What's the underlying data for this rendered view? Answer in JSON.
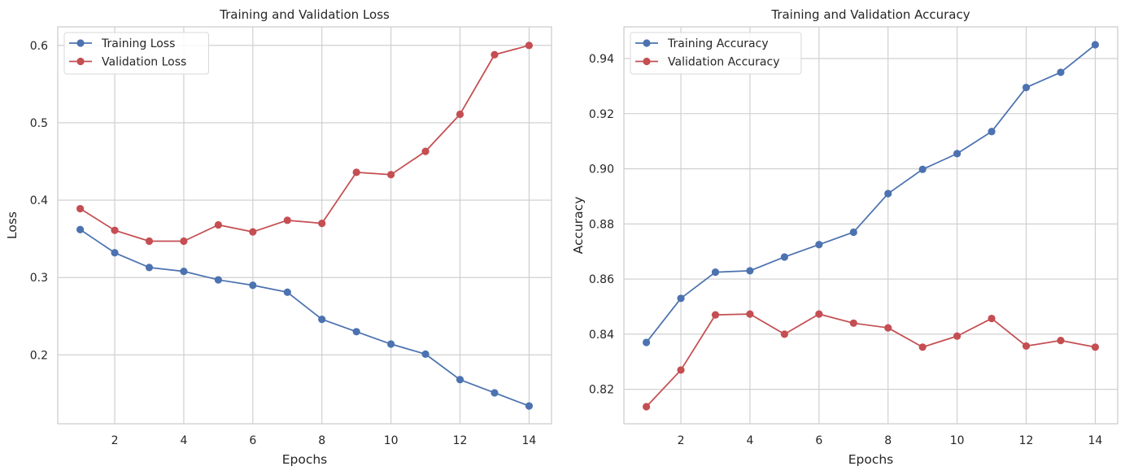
{
  "chart_data": [
    {
      "type": "line",
      "title": "Training and Validation Loss",
      "xlabel": "Epochs",
      "ylabel": "Loss",
      "x": [
        1,
        2,
        3,
        4,
        5,
        6,
        7,
        8,
        9,
        10,
        11,
        12,
        13,
        14
      ],
      "xlim": [
        0.35,
        14.65
      ],
      "ylim": [
        0.111,
        0.624
      ],
      "xticks": [
        2,
        4,
        6,
        8,
        10,
        12,
        14
      ],
      "yticks": [
        0.2,
        0.3,
        0.4,
        0.5,
        0.6
      ],
      "ytick_labels": [
        "0.2",
        "0.3",
        "0.4",
        "0.5",
        "0.6"
      ],
      "grid": true,
      "legend_loc": "upper left",
      "series": [
        {
          "name": "Training Loss",
          "color": "#4c72b0",
          "values": [
            0.362,
            0.332,
            0.313,
            0.308,
            0.297,
            0.29,
            0.281,
            0.246,
            0.23,
            0.214,
            0.201,
            0.168,
            0.151,
            0.134
          ]
        },
        {
          "name": "Validation Loss",
          "color": "#c44e52",
          "values": [
            0.389,
            0.361,
            0.347,
            0.347,
            0.368,
            0.359,
            0.374,
            0.37,
            0.436,
            0.433,
            0.463,
            0.511,
            0.588,
            0.6
          ]
        }
      ]
    },
    {
      "type": "line",
      "title": "Training and Validation Accuracy",
      "xlabel": "Epochs",
      "ylabel": "Accuracy",
      "x": [
        1,
        2,
        3,
        4,
        5,
        6,
        7,
        8,
        9,
        10,
        11,
        12,
        13,
        14
      ],
      "xlim": [
        0.35,
        14.65
      ],
      "ylim": [
        0.8075,
        0.9515
      ],
      "xticks": [
        2,
        4,
        6,
        8,
        10,
        12,
        14
      ],
      "yticks": [
        0.82,
        0.84,
        0.86,
        0.88,
        0.9,
        0.92,
        0.94
      ],
      "ytick_labels": [
        "0.82",
        "0.84",
        "0.86",
        "0.88",
        "0.90",
        "0.92",
        "0.94"
      ],
      "grid": true,
      "legend_loc": "upper left",
      "series": [
        {
          "name": "Training Accuracy",
          "color": "#4c72b0",
          "values": [
            0.837,
            0.853,
            0.8625,
            0.863,
            0.868,
            0.8725,
            0.877,
            0.891,
            0.8998,
            0.9055,
            0.9135,
            0.9295,
            0.935,
            0.945
          ]
        },
        {
          "name": "Validation Accuracy",
          "color": "#c44e52",
          "values": [
            0.8137,
            0.827,
            0.847,
            0.8473,
            0.84,
            0.8473,
            0.844,
            0.8423,
            0.8353,
            0.8393,
            0.8457,
            0.8357,
            0.8377,
            0.8353
          ]
        }
      ]
    }
  ]
}
